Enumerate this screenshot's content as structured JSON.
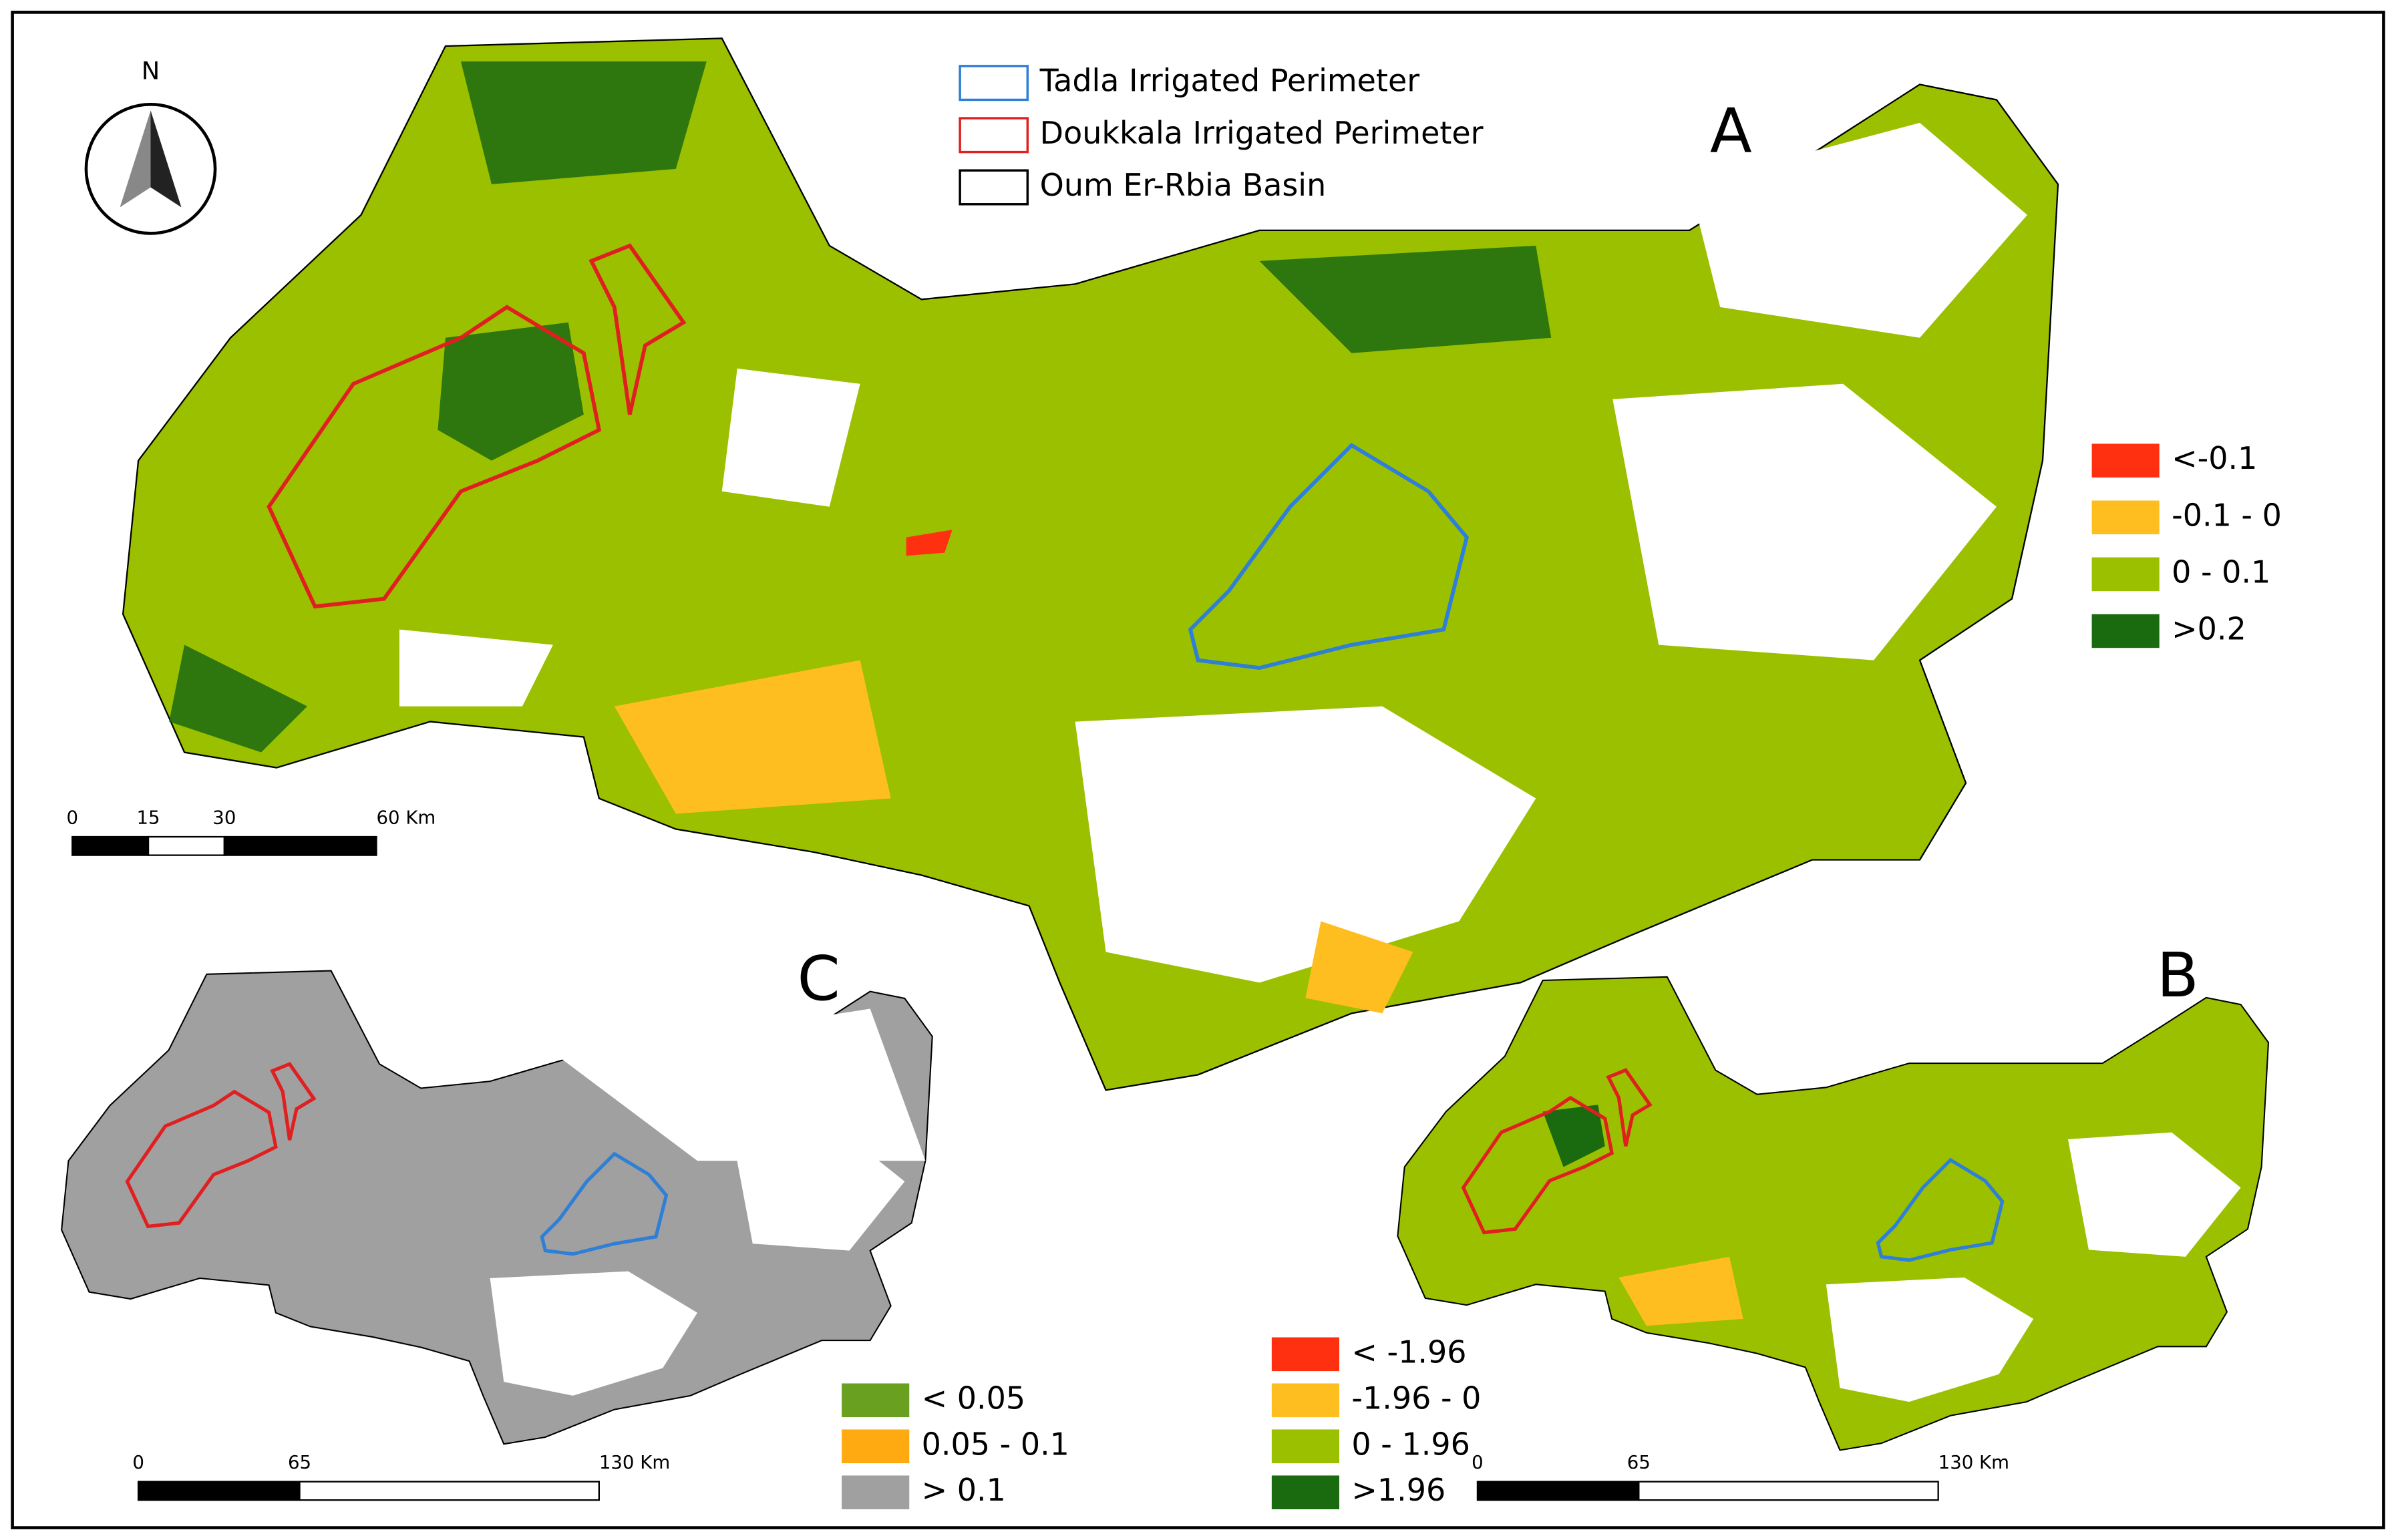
{
  "north_arrow": "N",
  "legend": [
    {
      "label": "Tadla Irrigated Perimeter",
      "color": "#2f7fd6"
    },
    {
      "label": "Doukkala Irrigated Perimeter",
      "color": "#e02020"
    },
    {
      "label": "Oum Er-Rbia Basin",
      "color": "#000000"
    }
  ],
  "panels": [
    {
      "letter": "A",
      "classes": [
        {
          "label": "<-0.1",
          "color": "#ff3010"
        },
        {
          "label": "-0.1 - 0",
          "color": "#ffbe20"
        },
        {
          "label": "0 - 0.1",
          "color": "#9ac000"
        },
        {
          "label": ">0.2",
          "color": "#1a6a10"
        }
      ],
      "scale": [
        "0",
        "15",
        "30",
        "60 Km"
      ]
    },
    {
      "letter": "B",
      "classes": [
        {
          "label": "< -1.96",
          "color": "#ff3010"
        },
        {
          "label": "-1.96 - 0",
          "color": "#ffbe20"
        },
        {
          "label": "0 - 1.96",
          "color": "#9ac000"
        },
        {
          "label": ">1.96",
          "color": "#1a6a10"
        }
      ],
      "scale": [
        "0",
        "65",
        "130 Km"
      ]
    },
    {
      "letter": "C",
      "classes": [
        {
          "label": "< 0.05",
          "color": "#6aa020"
        },
        {
          "label": "0.05 - 0.1",
          "color": "#ffaa10"
        },
        {
          "label": "> 0.1",
          "color": "#a0a0a0"
        }
      ],
      "scale": [
        "0",
        "65",
        "130 Km"
      ]
    }
  ]
}
